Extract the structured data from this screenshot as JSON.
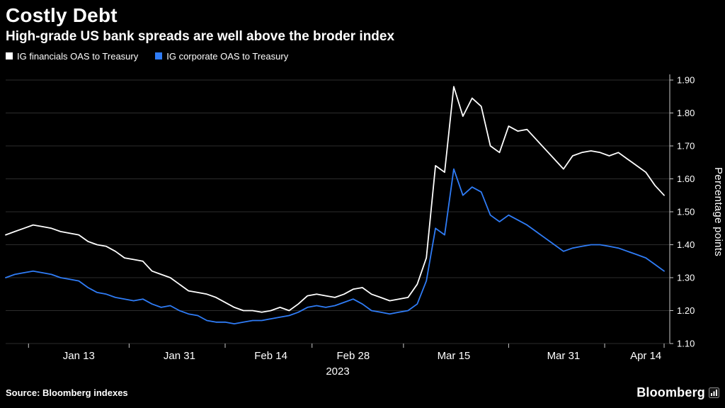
{
  "header": {
    "title": "Costly Debt",
    "subtitle": "High-grade US bank spreads are well above the broder index"
  },
  "footer": {
    "source": "Source: Bloomberg indexes",
    "brand": "Bloomberg"
  },
  "colors": {
    "background": "#000000",
    "grid": "#2d2d2d",
    "axis": "#c8c8c8",
    "financials_line": "#ffffff",
    "corporate_line": "#2f7cf6"
  },
  "chart_data": {
    "type": "line",
    "title": "Costly Debt",
    "subtitle": "High-grade US bank spreads are well above the broder index",
    "xlabel": "",
    "ylabel": "Percentage points",
    "ylim": [
      1.1,
      1.9
    ],
    "ytick_step": 0.1,
    "grid": true,
    "legend_position": "top-left",
    "year_label": "2023",
    "xticks": [
      {
        "label": "Jan 13",
        "i": 8
      },
      {
        "label": "Jan 31",
        "i": 19
      },
      {
        "label": "Feb 14",
        "i": 29
      },
      {
        "label": "Feb 28",
        "i": 38
      },
      {
        "label": "Mar 15",
        "i": 49
      },
      {
        "label": "Mar 31",
        "i": 61
      },
      {
        "label": "Apr 14",
        "i": 70
      }
    ],
    "series": [
      {
        "name": "IG financials OAS to Treasury",
        "color": "#ffffff",
        "values": [
          1.43,
          1.44,
          1.45,
          1.46,
          1.455,
          1.45,
          1.44,
          1.435,
          1.43,
          1.41,
          1.4,
          1.395,
          1.38,
          1.36,
          1.355,
          1.35,
          1.32,
          1.31,
          1.3,
          1.28,
          1.26,
          1.255,
          1.25,
          1.24,
          1.225,
          1.21,
          1.2,
          1.2,
          1.195,
          1.2,
          1.21,
          1.2,
          1.22,
          1.245,
          1.25,
          1.245,
          1.24,
          1.25,
          1.265,
          1.27,
          1.25,
          1.24,
          1.23,
          1.235,
          1.24,
          1.28,
          1.36,
          1.64,
          1.62,
          1.88,
          1.79,
          1.845,
          1.82,
          1.7,
          1.68,
          1.76,
          1.745,
          1.75,
          1.72,
          1.69,
          1.66,
          1.63,
          1.67,
          1.68,
          1.685,
          1.68,
          1.67,
          1.68,
          1.66,
          1.64,
          1.62,
          1.58,
          1.55
        ]
      },
      {
        "name": "IG corporate OAS to Treasury",
        "color": "#2f7cf6",
        "values": [
          1.3,
          1.31,
          1.315,
          1.32,
          1.315,
          1.31,
          1.3,
          1.295,
          1.29,
          1.27,
          1.255,
          1.25,
          1.24,
          1.235,
          1.23,
          1.235,
          1.22,
          1.21,
          1.215,
          1.2,
          1.19,
          1.185,
          1.17,
          1.165,
          1.165,
          1.16,
          1.165,
          1.17,
          1.17,
          1.175,
          1.18,
          1.185,
          1.195,
          1.21,
          1.215,
          1.21,
          1.215,
          1.225,
          1.235,
          1.22,
          1.2,
          1.195,
          1.19,
          1.195,
          1.2,
          1.22,
          1.29,
          1.45,
          1.43,
          1.63,
          1.55,
          1.575,
          1.56,
          1.49,
          1.47,
          1.49,
          1.475,
          1.46,
          1.44,
          1.42,
          1.4,
          1.38,
          1.39,
          1.395,
          1.4,
          1.4,
          1.395,
          1.39,
          1.38,
          1.37,
          1.36,
          1.34,
          1.32
        ]
      }
    ]
  }
}
